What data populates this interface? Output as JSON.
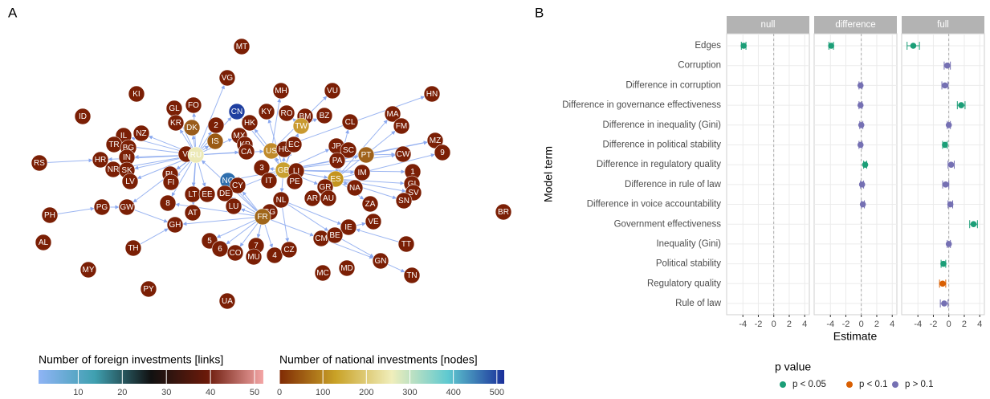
{
  "chart_data": [
    {
      "type": "network",
      "panel_label": "A",
      "edge_color": "#8aa8ef",
      "nodes": [
        {
          "label": "MT",
          "color": "#7b1f05"
        },
        {
          "label": "VG",
          "color": "#7b1f05"
        },
        {
          "label": "MH",
          "color": "#7b1f05"
        },
        {
          "label": "VU",
          "color": "#7b1f05"
        },
        {
          "label": "HN",
          "color": "#7b1f05"
        },
        {
          "label": "KI",
          "color": "#7b1f05"
        },
        {
          "label": "GL",
          "color": "#7b1f05"
        },
        {
          "label": "FO",
          "color": "#7b1f05"
        },
        {
          "label": "CN",
          "color": "#1f3fa0"
        },
        {
          "label": "KY",
          "color": "#7b1f05"
        },
        {
          "label": "RO",
          "color": "#7b1f05"
        },
        {
          "label": "BM",
          "color": "#7b1f05"
        },
        {
          "label": "BZ",
          "color": "#7b1f05"
        },
        {
          "label": "MA",
          "color": "#7b1f05"
        },
        {
          "label": "ID",
          "color": "#7b1f05"
        },
        {
          "label": "KR",
          "color": "#7b1f05"
        },
        {
          "label": "DK",
          "color": "#9a5c1a"
        },
        {
          "label": "2",
          "color": "#7b1f05"
        },
        {
          "label": "HK",
          "color": "#7b1f05"
        },
        {
          "label": "TW",
          "color": "#c99a30"
        },
        {
          "label": "CL",
          "color": "#7b1f05"
        },
        {
          "label": "FM",
          "color": "#7b1f05"
        },
        {
          "label": "NZ",
          "color": "#7b1f05"
        },
        {
          "label": "IL",
          "color": "#7b1f05"
        },
        {
          "label": "MX",
          "color": "#7b1f05"
        },
        {
          "label": "TR",
          "color": "#7b1f05"
        },
        {
          "label": "BG",
          "color": "#7b1f05"
        },
        {
          "label": "IS",
          "color": "#9a5a14"
        },
        {
          "label": "KP",
          "color": "#7b1f05"
        },
        {
          "label": "US",
          "color": "#c08a2a"
        },
        {
          "label": "HU",
          "color": "#7b1f05"
        },
        {
          "label": "EC",
          "color": "#7b1f05"
        },
        {
          "label": "JP",
          "color": "#7b1f05"
        },
        {
          "label": "SC",
          "color": "#7b1f05"
        },
        {
          "label": "PT",
          "color": "#a0621a"
        },
        {
          "label": "CW",
          "color": "#7b1f05"
        },
        {
          "label": "MZ",
          "color": "#7b1f05"
        },
        {
          "label": "9",
          "color": "#7b1f05"
        },
        {
          "label": "CA",
          "color": "#7b1f05"
        },
        {
          "label": "VI",
          "color": "#7b1f05"
        },
        {
          "label": "RU",
          "color": "#ece9b6"
        },
        {
          "label": "IN",
          "color": "#7b1f05"
        },
        {
          "label": "HR",
          "color": "#7b1f05"
        },
        {
          "label": "RS",
          "color": "#7b1f05"
        },
        {
          "label": "NR",
          "color": "#7b1f05"
        },
        {
          "label": "SK",
          "color": "#7b1f05"
        },
        {
          "label": "PA",
          "color": "#7b1f05"
        },
        {
          "label": "3",
          "color": "#7b1f05"
        },
        {
          "label": "GB",
          "color": "#c9a030"
        },
        {
          "label": "LI",
          "color": "#7b1f05"
        },
        {
          "label": "IM",
          "color": "#7b1f05"
        },
        {
          "label": "1",
          "color": "#7b1f05"
        },
        {
          "label": "PL",
          "color": "#7b1f05"
        },
        {
          "label": "FI",
          "color": "#7b1f05"
        },
        {
          "label": "NO",
          "color": "#2f6fae"
        },
        {
          "label": "CY",
          "color": "#7b1f05"
        },
        {
          "label": "IT",
          "color": "#7b1f05"
        },
        {
          "label": "PE",
          "color": "#7b1f05"
        },
        {
          "label": "ES",
          "color": "#c4941e"
        },
        {
          "label": "GI",
          "color": "#7b1f05"
        },
        {
          "label": "LV",
          "color": "#7b1f05"
        },
        {
          "label": "GR",
          "color": "#7b1f05"
        },
        {
          "label": "NA",
          "color": "#7b1f05"
        },
        {
          "label": "SV",
          "color": "#7b1f05"
        },
        {
          "label": "LT",
          "color": "#7b1f05"
        },
        {
          "label": "EE",
          "color": "#7b1f05"
        },
        {
          "label": "DE",
          "color": "#7b1f05"
        },
        {
          "label": "NL",
          "color": "#7b1f05"
        },
        {
          "label": "AR",
          "color": "#7b1f05"
        },
        {
          "label": "AU",
          "color": "#7b1f05"
        },
        {
          "label": "ZA",
          "color": "#7b1f05"
        },
        {
          "label": "SN",
          "color": "#7b1f05"
        },
        {
          "label": "8",
          "color": "#7b1f05"
        },
        {
          "label": "PG",
          "color": "#7b1f05"
        },
        {
          "label": "GW",
          "color": "#7b1f05"
        },
        {
          "label": "LU",
          "color": "#7b1f05"
        },
        {
          "label": "SG",
          "color": "#7b1f05"
        },
        {
          "label": "FR",
          "color": "#a0661a"
        },
        {
          "label": "AT",
          "color": "#7b1f05"
        },
        {
          "label": "PH",
          "color": "#7b1f05"
        },
        {
          "label": "VE",
          "color": "#7b1f05"
        },
        {
          "label": "GH",
          "color": "#7b1f05"
        },
        {
          "label": "IE",
          "color": "#7b1f05"
        },
        {
          "label": "BR",
          "color": "#7b1f05"
        },
        {
          "label": "TT",
          "color": "#7b1f05"
        },
        {
          "label": "CM",
          "color": "#7b1f05"
        },
        {
          "label": "BE",
          "color": "#7b1f05"
        },
        {
          "label": "AL",
          "color": "#7b1f05"
        },
        {
          "label": "5",
          "color": "#7b1f05"
        },
        {
          "label": "6",
          "color": "#7b1f05"
        },
        {
          "label": "CO",
          "color": "#7b1f05"
        },
        {
          "label": "7",
          "color": "#7b1f05"
        },
        {
          "label": "MU",
          "color": "#7b1f05"
        },
        {
          "label": "4",
          "color": "#7b1f05"
        },
        {
          "label": "CZ",
          "color": "#7b1f05"
        },
        {
          "label": "TH",
          "color": "#7b1f05"
        },
        {
          "label": "GN",
          "color": "#7b1f05"
        },
        {
          "label": "MY",
          "color": "#7b1f05"
        },
        {
          "label": "MC",
          "color": "#7b1f05"
        },
        {
          "label": "MD",
          "color": "#7b1f05"
        },
        {
          "label": "TN",
          "color": "#7b1f05"
        },
        {
          "label": "PY",
          "color": "#7b1f05"
        },
        {
          "label": "UA",
          "color": "#7b1f05"
        }
      ],
      "edges": [
        [
          "RU",
          "HR"
        ],
        [
          "RU",
          "TR"
        ],
        [
          "RU",
          "NZ"
        ],
        [
          "RU",
          "KR"
        ],
        [
          "RU",
          "DK"
        ],
        [
          "RU",
          "IN"
        ],
        [
          "RU",
          "SK"
        ],
        [
          "RU",
          "LV"
        ],
        [
          "RU",
          "PL"
        ],
        [
          "RU",
          "FI"
        ],
        [
          "RU",
          "LT"
        ],
        [
          "RU",
          "EE"
        ],
        [
          "RU",
          "8"
        ],
        [
          "RU",
          "GW"
        ],
        [
          "RU",
          "AT"
        ],
        [
          "RU",
          "CA"
        ],
        [
          "RU",
          "MX"
        ],
        [
          "RU",
          "US"
        ],
        [
          "RU",
          "CN"
        ],
        [
          "RU",
          "2"
        ],
        [
          "RU",
          "IS"
        ],
        [
          "RU",
          "VG"
        ],
        [
          "RU",
          "FO"
        ],
        [
          "RU",
          "GL"
        ],
        [
          "RU",
          "IL"
        ],
        [
          "RU",
          "NR"
        ],
        [
          "RS",
          "HR"
        ],
        [
          "PH",
          "PG"
        ],
        [
          "GB",
          "US"
        ],
        [
          "GB",
          "HU"
        ],
        [
          "GB",
          "EC"
        ],
        [
          "GB",
          "JP"
        ],
        [
          "GB",
          "ES"
        ],
        [
          "GB",
          "IT"
        ],
        [
          "GB",
          "PE"
        ],
        [
          "GB",
          "NL"
        ],
        [
          "GB",
          "CN"
        ],
        [
          "GB",
          "KY"
        ],
        [
          "GB",
          "BM"
        ],
        [
          "GB",
          "TW"
        ],
        [
          "GB",
          "3"
        ],
        [
          "GB",
          "DE"
        ],
        [
          "GB",
          "NO"
        ],
        [
          "GB",
          "GR"
        ],
        [
          "GB",
          "IM"
        ],
        [
          "GB",
          "1"
        ],
        [
          "GB",
          "CW"
        ],
        [
          "GB",
          "PT"
        ],
        [
          "GB",
          "MZ"
        ],
        [
          "ES",
          "GI"
        ],
        [
          "ES",
          "SV"
        ],
        [
          "ES",
          "SN"
        ],
        [
          "ES",
          "NA"
        ],
        [
          "ES",
          "ZA"
        ],
        [
          "ES",
          "AR"
        ],
        [
          "ES",
          "PA"
        ],
        [
          "ES",
          "SC"
        ],
        [
          "ES",
          "CL"
        ],
        [
          "ES",
          "MA"
        ],
        [
          "ES",
          "FM"
        ],
        [
          "ES",
          "9"
        ],
        [
          "FR",
          "GH"
        ],
        [
          "FR",
          "5"
        ],
        [
          "FR",
          "6"
        ],
        [
          "FR",
          "CO"
        ],
        [
          "FR",
          "MU"
        ],
        [
          "FR",
          "7"
        ],
        [
          "FR",
          "4"
        ],
        [
          "FR",
          "CM"
        ],
        [
          "FR",
          "LU"
        ],
        [
          "FR",
          "DE"
        ],
        [
          "FR",
          "CY"
        ],
        [
          "FR",
          "NO"
        ],
        [
          "FR",
          "SG"
        ],
        [
          "FR",
          "RU"
        ],
        [
          "FR",
          "8"
        ],
        [
          "NL",
          "BE"
        ],
        [
          "NL",
          "IE"
        ],
        [
          "NL",
          "CZ"
        ],
        [
          "CM",
          "GN"
        ],
        [
          "BE",
          "GN"
        ],
        [
          "GN",
          "TN"
        ],
        [
          "IE",
          "VE"
        ],
        [
          "TT",
          "IE"
        ],
        [
          "US",
          "MH"
        ],
        [
          "US",
          "HK"
        ],
        [
          "US",
          "VU"
        ],
        [
          "US",
          "HN"
        ],
        [
          "TW",
          "BZ"
        ],
        [
          "TW",
          "RO"
        ],
        [
          "PT",
          "CW"
        ],
        [
          "PT",
          "MZ"
        ],
        [
          "PG",
          "GW"
        ],
        [
          "GW",
          "GH"
        ],
        [
          "TH",
          "GH"
        ]
      ],
      "legends": [
        {
          "title": "Number of foreign investments [links]",
          "lim": [
            1,
            52
          ],
          "ticks": [
            10,
            20,
            30,
            40,
            50
          ],
          "colors": [
            "#8fb4f5",
            "#3fa0b0",
            "#111111",
            "#6b1a0a",
            "#f4a6a6"
          ]
        },
        {
          "title": "Number of national investments [nodes]",
          "lim": [
            0,
            517
          ],
          "ticks": [
            0,
            100,
            200,
            300,
            400,
            500
          ],
          "colors": [
            "#7f2a04",
            "#c9a227",
            "#f0eebb",
            "#5fc9d0",
            "#1a2f9a"
          ]
        }
      ]
    },
    {
      "type": "dotplot",
      "panel_label": "B",
      "xlabel": "Estimate",
      "ylabel": "Model term",
      "xlim": [
        -6.1,
        4.6
      ],
      "xticks": [
        -4,
        -2,
        0,
        2,
        4
      ],
      "categories": [
        "Edges",
        "Corruption",
        "Difference in corruption",
        "Difference in governance effectiveness",
        "Difference in inequality (Gini)",
        "Difference in political stability",
        "Difference in regulatory quality",
        "Difference in rule of law",
        "Difference in voice accountability",
        "Government effectiveness",
        "Inequality (Gini)",
        "Political stability",
        "Regulatory quality",
        "Rule of law"
      ],
      "legend_title": "p value",
      "legend": [
        {
          "label": "p < 0.05",
          "color": "#1b9e77"
        },
        {
          "label": "p < 0.1",
          "color": "#d95f02"
        },
        {
          "label": "p > 0.1",
          "color": "#7570b3"
        }
      ],
      "facets": [
        {
          "name": "null",
          "values": [
            -3.9,
            null,
            null,
            null,
            null,
            null,
            null,
            null,
            null,
            null,
            null,
            null,
            null,
            null
          ],
          "errors": [
            0.3,
            null,
            null,
            null,
            null,
            null,
            null,
            null,
            null,
            null,
            null,
            null,
            null,
            null
          ],
          "p": [
            "p < 0.05",
            null,
            null,
            null,
            null,
            null,
            null,
            null,
            null,
            null,
            null,
            null,
            null,
            null
          ]
        },
        {
          "name": "difference",
          "values": [
            -3.9,
            null,
            -0.1,
            -0.1,
            0.0,
            -0.1,
            0.5,
            0.1,
            0.2,
            null,
            null,
            null,
            null,
            null
          ],
          "errors": [
            0.3,
            null,
            0.2,
            0.2,
            0.2,
            0.2,
            0.2,
            0.2,
            0.2,
            null,
            null,
            null,
            null,
            null
          ],
          "p": [
            "p < 0.05",
            null,
            "p > 0.1",
            "p > 0.1",
            "p > 0.1",
            "p > 0.1",
            "p < 0.05",
            "p > 0.1",
            "p > 0.1",
            null,
            null,
            null,
            null,
            null
          ]
        },
        {
          "name": "full",
          "values": [
            -4.6,
            -0.2,
            -0.5,
            1.6,
            0.0,
            -0.5,
            0.3,
            -0.4,
            0.2,
            3.2,
            0.0,
            -0.7,
            -0.8,
            -0.6
          ],
          "errors": [
            0.8,
            0.4,
            0.4,
            0.5,
            0.2,
            0.3,
            0.4,
            0.4,
            0.3,
            0.5,
            0.2,
            0.3,
            0.4,
            0.5
          ],
          "p": [
            "p < 0.05",
            "p > 0.1",
            "p > 0.1",
            "p < 0.05",
            "p > 0.1",
            "p < 0.05",
            "p > 0.1",
            "p > 0.1",
            "p > 0.1",
            "p < 0.05",
            "p > 0.1",
            "p < 0.05",
            "p < 0.1",
            "p > 0.1"
          ]
        }
      ]
    }
  ]
}
